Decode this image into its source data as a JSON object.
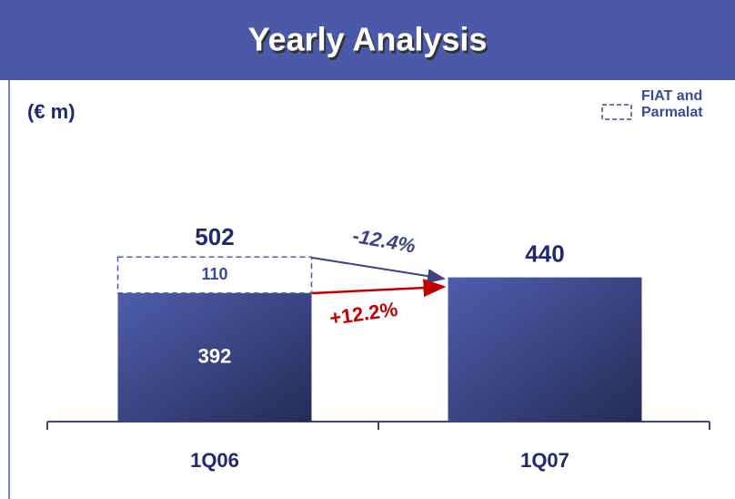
{
  "chart_data": {
    "type": "stacked_bar",
    "title": "Yearly Analysis",
    "unit_label": "(€ m)",
    "categories": [
      "1Q06",
      "1Q07"
    ],
    "series": [
      {
        "color": "#4a5aa8",
        "values": [
          392,
          440
        ]
      },
      {
        "name": "FIAT and Parmalat",
        "color": "#4a5aa8",
        "dashed": true,
        "values": [
          110,
          null
        ]
      }
    ],
    "totals": [
      502,
      null
    ],
    "annotations": [
      {
        "text": "-12.4%",
        "color": "#3a4580"
      },
      {
        "text": "+12.2%",
        "color": "#c00000"
      }
    ],
    "ylim": [
      0,
      600
    ]
  }
}
